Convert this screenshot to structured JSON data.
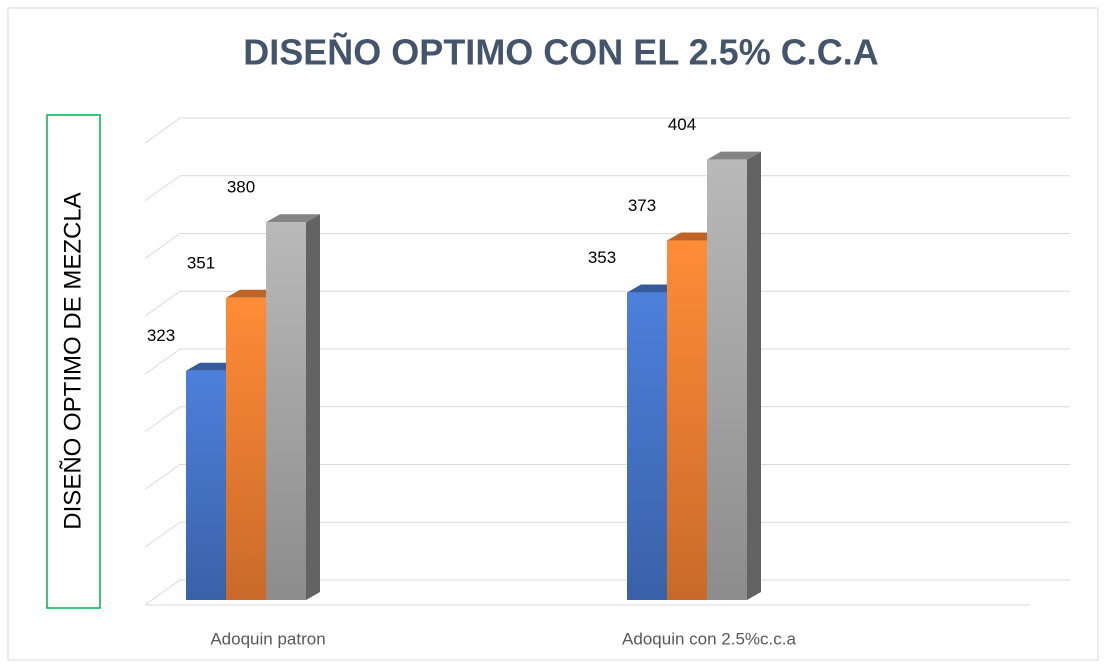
{
  "chart_data": {
    "type": "bar3d",
    "title": "DISEÑO OPTIMO CON EL 2.5% C.C.A",
    "y_label": "DISEÑO OPTIMO DE MEZCLA",
    "categories": [
      "Adoquin patron",
      "Adoquin con 2.5%c.c.a"
    ],
    "series": [
      {
        "color": "#4472c4",
        "values": [
          323,
          353
        ]
      },
      {
        "color": "#ed7d31",
        "values": [
          351,
          373
        ]
      },
      {
        "color": "#a5a5a5",
        "values": [
          380,
          404
        ]
      }
    ],
    "ylim": [
      235,
      420
    ],
    "grid": true
  }
}
